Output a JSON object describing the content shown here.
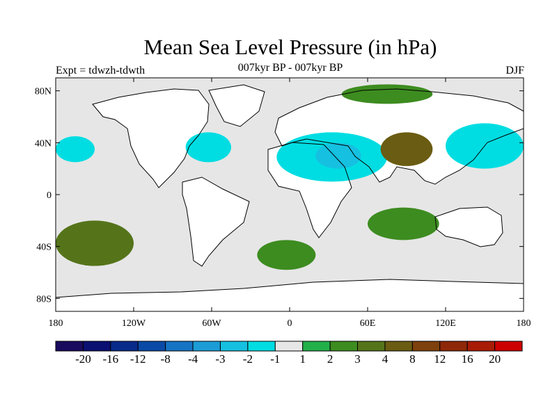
{
  "title": "Mean Sea Level Pressure (in hPa)",
  "subtitle": "007kyr BP - 007kyr BP",
  "left_label": "Expt = tdwzh-tdwth",
  "right_label": "DJF",
  "map": {
    "lat_range": [
      -90,
      90
    ],
    "lon_range": [
      -180,
      180
    ],
    "lat_ticks": [
      {
        "lat": 80,
        "label": "80N"
      },
      {
        "lat": 40,
        "label": "40N"
      },
      {
        "lat": 0,
        "label": "0"
      },
      {
        "lat": -40,
        "label": "40S"
      },
      {
        "lat": -80,
        "label": "80S"
      }
    ],
    "lon_ticks": [
      {
        "lon": -180,
        "label": "180"
      },
      {
        "lon": -120,
        "label": "120W"
      },
      {
        "lon": -60,
        "label": "60W"
      },
      {
        "lon": 0,
        "label": "0"
      },
      {
        "lon": 60,
        "label": "60E"
      },
      {
        "lon": 120,
        "label": "120E"
      },
      {
        "lon": 180,
        "label": "180"
      }
    ],
    "background_color": "#e6e6e6",
    "land_color": "#ffffff",
    "coast_color": "#000000"
  },
  "colorbar": {
    "colors": [
      "#1a0a5e",
      "#0a0f72",
      "#082a8a",
      "#0a4aa6",
      "#1674c4",
      "#1c9cd6",
      "#16c0e0",
      "#00dde2",
      "#e6e6e6",
      "#22b04a",
      "#3d8c20",
      "#55741a",
      "#6a5c12",
      "#7e400c",
      "#8e2808",
      "#a81c06",
      "#cc0000"
    ],
    "labels": [
      "-20",
      "-16",
      "-12",
      "-8",
      "-4",
      "-3",
      "-2",
      "-1",
      "1",
      "2",
      "3",
      "4",
      "8",
      "12",
      "16",
      "20"
    ]
  },
  "chart_data": {
    "type": "contour-map",
    "variable": "Mean Sea Level Pressure difference (hPa)",
    "title": "Mean Sea Level Pressure (in hPa)",
    "subtitle": "007kyr BP - 007kyr BP",
    "season": "DJF",
    "experiment": "Expt = tdwzh-tdwth",
    "levels": [
      -20,
      -16,
      -12,
      -8,
      -4,
      -3,
      -2,
      -1,
      1,
      2,
      3,
      4,
      8,
      12,
      16,
      20
    ],
    "features": [
      {
        "name": "Eurasia / N Africa / Middle East negative",
        "lon": [
          -10,
          75
        ],
        "lat": [
          10,
          48
        ],
        "value": -2
      },
      {
        "name": "Arabia / Persia stronger negative",
        "lon": [
          20,
          55
        ],
        "lat": [
          20,
          40
        ],
        "value": -3
      },
      {
        "name": "North Pacific negative",
        "lon": [
          120,
          180
        ],
        "lat": [
          20,
          55
        ],
        "value": -2
      },
      {
        "name": "Central North Pacific negative",
        "lon": [
          -180,
          -150
        ],
        "lat": [
          25,
          45
        ],
        "value": -2
      },
      {
        "name": "Western North Atlantic negative",
        "lon": [
          -80,
          -45
        ],
        "lat": [
          25,
          48
        ],
        "value": -2
      },
      {
        "name": "Tibetan Plateau positive",
        "lon": [
          70,
          110
        ],
        "lat": [
          22,
          48
        ],
        "value": 4
      },
      {
        "name": "Arctic Siberia positive",
        "lon": [
          40,
          110
        ],
        "lat": [
          70,
          85
        ],
        "value": 2
      },
      {
        "name": "South Pacific positive",
        "lon": [
          -180,
          -120
        ],
        "lat": [
          -55,
          -20
        ],
        "value": 3
      },
      {
        "name": "South Atlantic positive",
        "lon": [
          -25,
          20
        ],
        "lat": [
          -58,
          -35
        ],
        "value": 2
      },
      {
        "name": "South Indian Ocean positive",
        "lon": [
          60,
          115
        ],
        "lat": [
          -35,
          -10
        ],
        "value": 2
      }
    ]
  }
}
